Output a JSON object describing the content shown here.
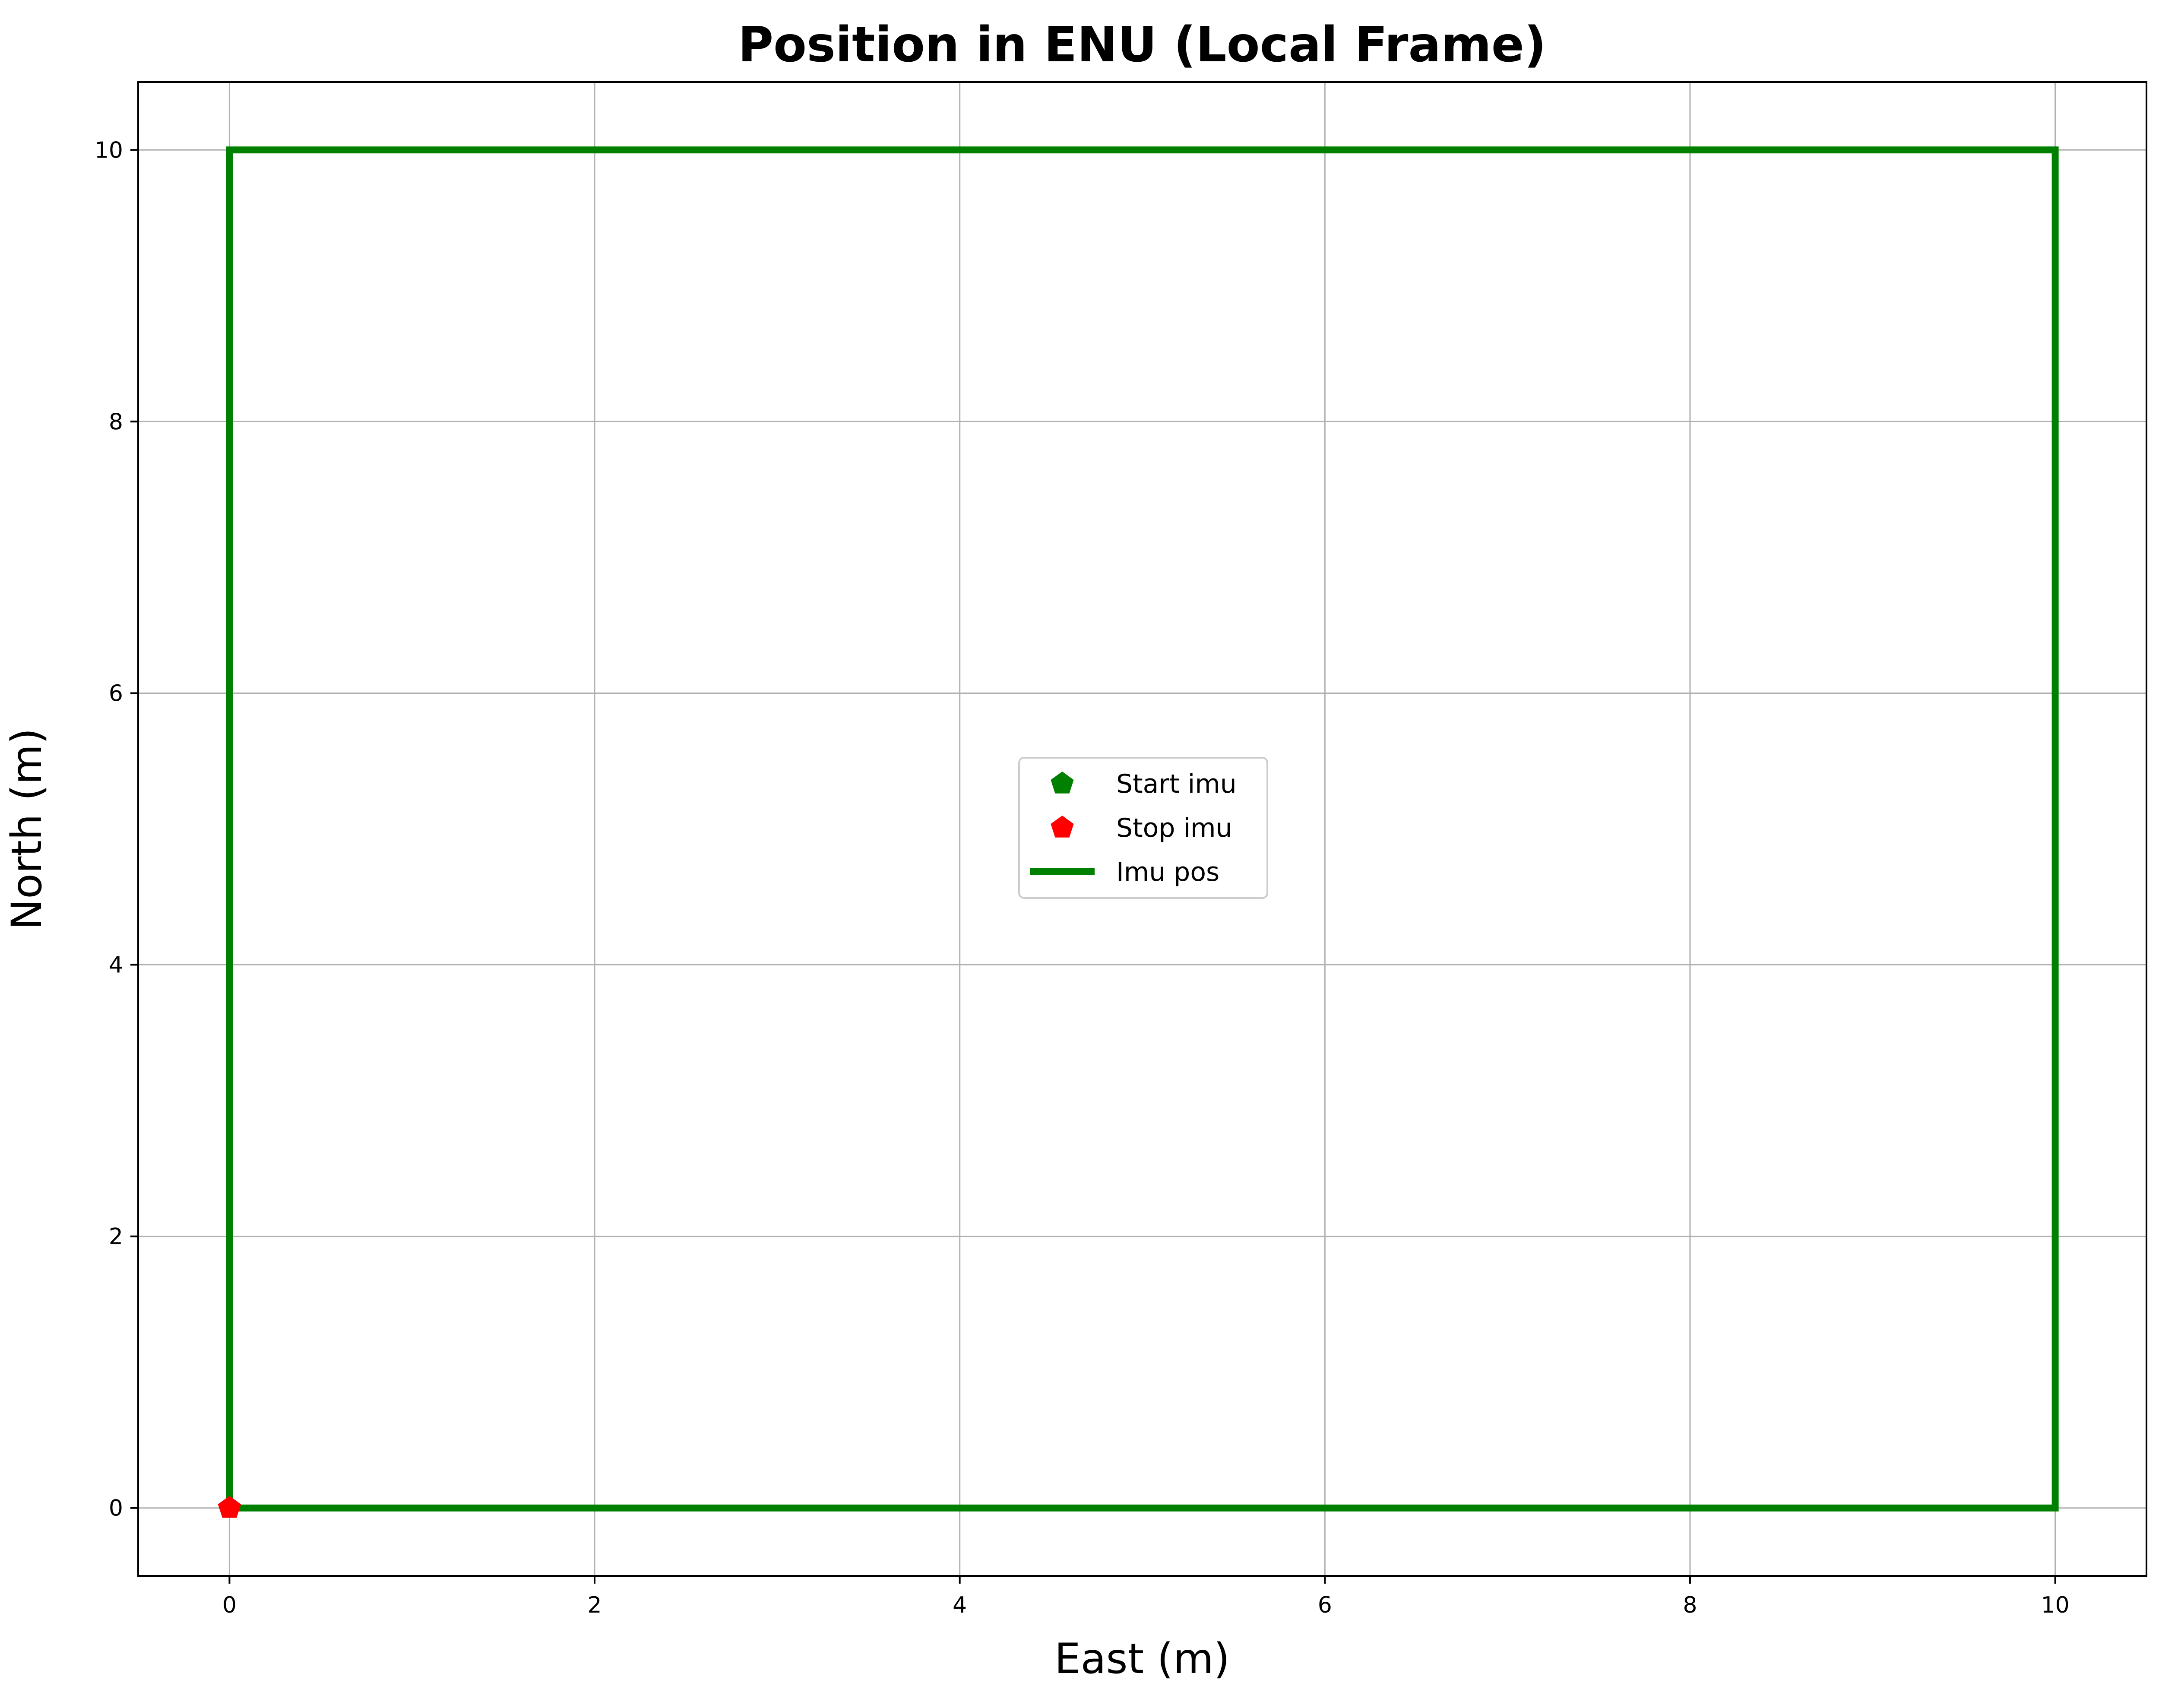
{
  "chart_data": {
    "type": "line",
    "title": "Position in ENU (Local Frame)",
    "xlabel": "East (m)",
    "ylabel": "North (m)",
    "xlim": [
      -0.5,
      10.5
    ],
    "ylim": [
      -0.5,
      10.5
    ],
    "xticks": [
      0,
      2,
      4,
      6,
      8,
      10
    ],
    "yticks": [
      0,
      2,
      4,
      6,
      8,
      10
    ],
    "xtick_labels": [
      "0",
      "2",
      "4",
      "6",
      "8",
      "10"
    ],
    "ytick_labels": [
      "0",
      "2",
      "4",
      "6",
      "8",
      "10"
    ],
    "grid": true,
    "legend_placement": "center",
    "series": [
      {
        "name": "Imu pos",
        "kind": "line",
        "color": "#008000",
        "x": [
          0,
          0,
          10,
          10,
          0
        ],
        "y": [
          0,
          10,
          10,
          0,
          0
        ]
      },
      {
        "name": "Start imu",
        "kind": "marker",
        "marker": "pentagon",
        "color": "#008000",
        "x": [
          0
        ],
        "y": [
          0
        ]
      },
      {
        "name": "Stop imu",
        "kind": "marker",
        "marker": "pentagon",
        "color": "#ff0000",
        "x": [
          0
        ],
        "y": [
          0
        ]
      }
    ],
    "legend_entries": [
      {
        "label": "Start imu",
        "marker": "pentagon",
        "color": "#008000"
      },
      {
        "label": "Stop imu",
        "marker": "pentagon",
        "color": "#ff0000"
      },
      {
        "label": "Imu pos",
        "marker": "line",
        "color": "#008000"
      }
    ]
  }
}
